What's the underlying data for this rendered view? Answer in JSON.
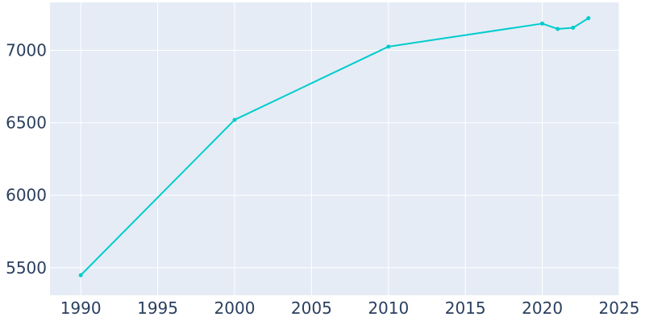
{
  "chart_data": {
    "type": "line",
    "title": "",
    "xlabel": "",
    "ylabel": "",
    "x": [
      1990,
      2000,
      2010,
      2020,
      2021,
      2022,
      2023
    ],
    "series": [
      {
        "values": [
          5448,
          6520,
          7025,
          7184,
          7147,
          7155,
          7221
        ]
      }
    ],
    "xlim": [
      1988,
      2025
    ],
    "ylim": [
      5310,
      7330
    ],
    "x_ticks": [
      1990,
      1995,
      2000,
      2005,
      2010,
      2015,
      2020,
      2025
    ],
    "y_ticks": [
      5500,
      6000,
      6500,
      7000
    ],
    "grid": true,
    "legend": "none",
    "colors": {
      "plot_background": "#e5ecf6",
      "grid": "#ffffff",
      "line": "#00cccc",
      "tick_text": "#2a3f5f"
    }
  }
}
